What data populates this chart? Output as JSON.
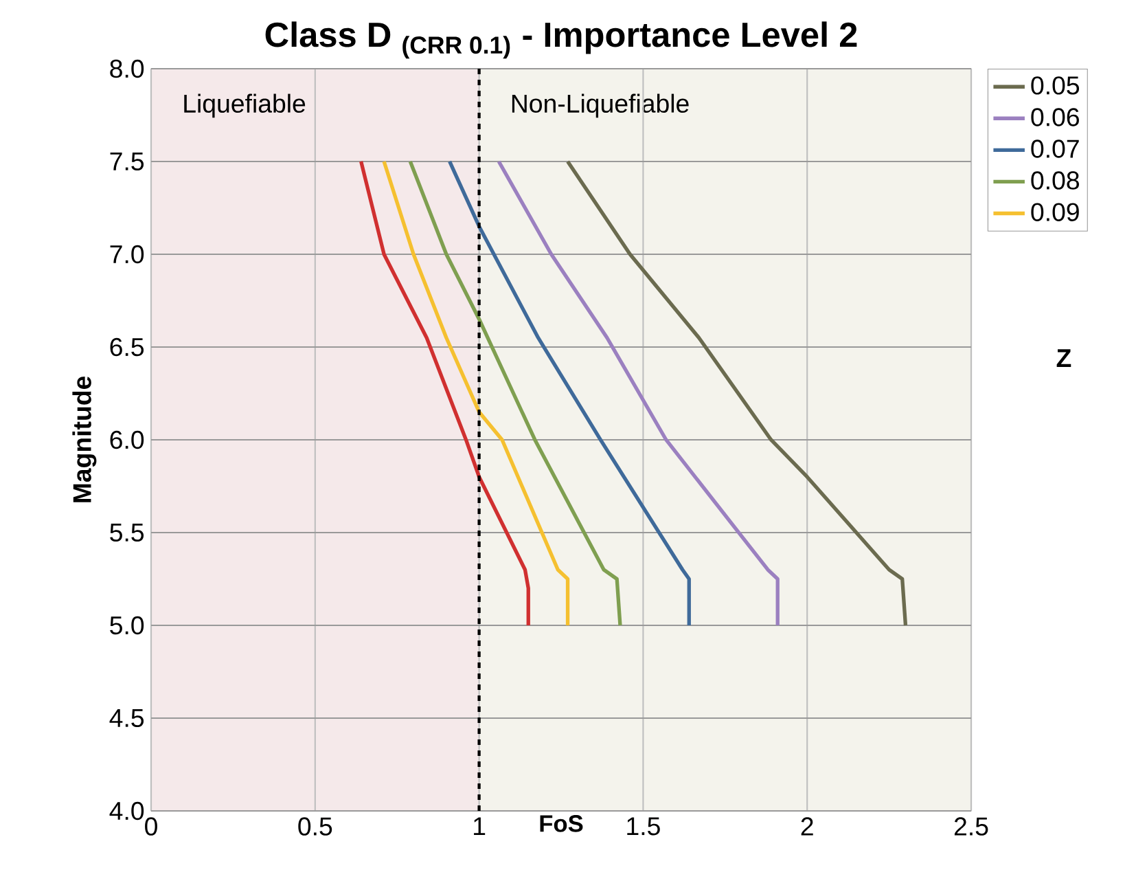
{
  "chart_data": {
    "type": "line",
    "title": "Class D $_{(CRR 0.1)}$ - Importance Level 2",
    "xlabel": "FoS",
    "ylabel": "Magnitude",
    "legend_title": "Z",
    "series": [
      {
        "name": "0.05",
        "color": "#6b6b4f",
        "x": [
          1.27,
          1.46,
          1.67,
          1.89,
          2.0,
          2.25,
          2.29,
          2.3
        ],
        "values": [
          7.5,
          7.0,
          6.55,
          6.0,
          5.8,
          5.3,
          5.25,
          5.0
        ]
      },
      {
        "name": "0.06",
        "color": "#9b80c0",
        "x": [
          1.06,
          1.22,
          1.39,
          1.57,
          1.88,
          1.91,
          1.91
        ],
        "values": [
          7.5,
          7.0,
          6.55,
          6.0,
          5.3,
          5.25,
          5.0
        ]
      },
      {
        "name": "0.07",
        "color": "#3f6a9a",
        "x": [
          0.91,
          1.0,
          1.18,
          1.37,
          1.62,
          1.64,
          1.64
        ],
        "values": [
          7.5,
          7.15,
          6.55,
          6.0,
          5.3,
          5.25,
          5.0
        ]
      },
      {
        "name": "0.08",
        "color": "#7f9f50",
        "x": [
          0.79,
          0.9,
          1.0,
          1.17,
          1.38,
          1.42,
          1.43
        ],
        "values": [
          7.5,
          7.0,
          6.65,
          6.0,
          5.3,
          5.25,
          5.0
        ]
      },
      {
        "name": "0.09",
        "color": "#f5c030",
        "x": [
          0.71,
          0.8,
          0.9,
          1.0,
          1.07,
          1.24,
          1.27,
          1.27
        ],
        "values": [
          7.5,
          7.0,
          6.55,
          6.15,
          6.0,
          5.3,
          5.25,
          5.0
        ]
      },
      {
        "color": "#d03030",
        "x": [
          0.64,
          0.71,
          0.84,
          0.96,
          1.0,
          1.14,
          1.15,
          1.15
        ],
        "values": [
          7.5,
          7.0,
          6.55,
          6.0,
          5.8,
          5.3,
          5.2,
          5.0
        ]
      }
    ],
    "xlim": [
      0,
      2.5
    ],
    "xticks": [
      0,
      0.5,
      1,
      1.5,
      2,
      2.5
    ],
    "ylim": [
      4,
      8
    ],
    "yticks": [
      {
        "value": 4,
        "label": "4.0"
      },
      {
        "value": 4.5,
        "label": "4.5"
      },
      {
        "value": 5,
        "label": "5.0"
      },
      {
        "value": 5.5,
        "label": "5.5"
      },
      {
        "value": 6,
        "label": "6.0"
      },
      {
        "value": 6.5,
        "label": "6.5"
      },
      {
        "value": 7,
        "label": "7.0"
      },
      {
        "value": 7.5,
        "label": "7.5"
      },
      {
        "value": 8,
        "label": "8.0"
      }
    ],
    "bands": [
      {
        "axis": "x",
        "from": 0,
        "to": 1,
        "label": "Liquefiable",
        "color": "#f5e9ea"
      },
      {
        "axis": "x",
        "from": 1,
        "to": 2.5,
        "label": "Non-Liquefiable",
        "color": "#f4f3ec"
      }
    ],
    "ref_lines": [
      {
        "axis": "x",
        "value": 1,
        "color": "#000000",
        "line_style": "dashed"
      }
    ],
    "grid": true,
    "legend": "right",
    "marker": "none",
    "line_style": "solid"
  }
}
